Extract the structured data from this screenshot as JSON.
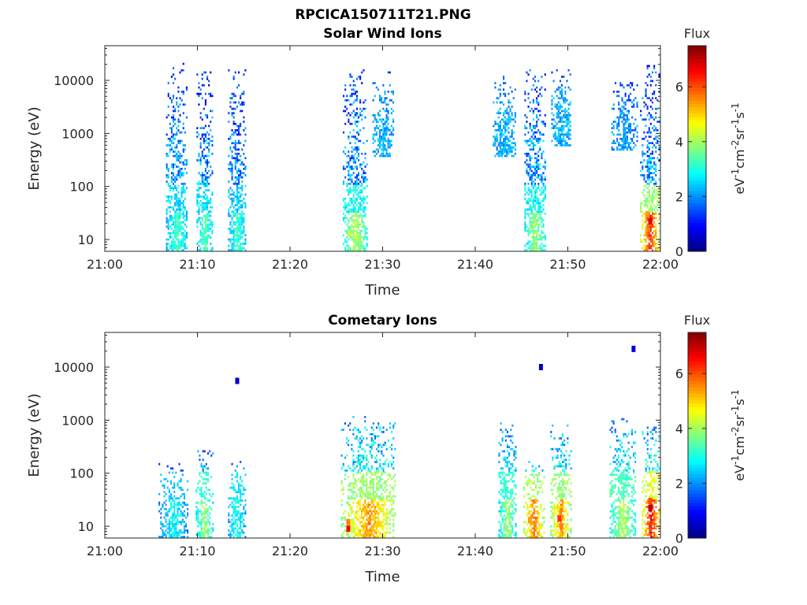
{
  "figure": {
    "main_title": "RPCICA150711T21.PNG",
    "colors": {
      "background": "#ffffff",
      "axes": "#262626",
      "colormap": "jet"
    }
  },
  "chart_data": [
    {
      "type": "heatmap",
      "title": "Solar Wind Ions",
      "xlabel": "Time",
      "ylabel": "Energy (eV)",
      "x_tick_labels": [
        "21:00",
        "21:10",
        "21:20",
        "21:30",
        "21:40",
        "21:50",
        "22:00"
      ],
      "x_ticks_min": [
        0,
        10,
        20,
        30,
        40,
        50,
        60
      ],
      "xlim_min": [
        0,
        60
      ],
      "yscale": "log",
      "y_tick_labels": [
        "10",
        "100",
        "1000",
        "10000"
      ],
      "y_ticks": [
        10,
        100,
        1000,
        10000
      ],
      "ylim": [
        6,
        45000
      ],
      "colorbar": {
        "title": "Flux",
        "label_html": "eV<tspan baseline-shift='super' font-size='12'>-1</tspan>cm<tspan baseline-shift='super' font-size='12'>-2</tspan>sr<tspan baseline-shift='super' font-size='12'>-1</tspan>s<tspan baseline-shift='super' font-size='12'>-1</tspan>",
        "ticks": [
          "0",
          "2",
          "4",
          "6"
        ],
        "range": [
          0,
          7.5
        ]
      },
      "bursts": [
        {
          "t_start": 6.6,
          "t_end": 8.9,
          "e_min": 6,
          "e_max": 20000,
          "center_flux": 2.0,
          "spread_flux": 1.6,
          "low_energy_flux": 3.0
        },
        {
          "t_start": 9.9,
          "t_end": 11.6,
          "e_min": 6,
          "e_max": 14000,
          "center_flux": 2.0,
          "spread_flux": 1.8,
          "low_energy_flux": 3.2
        },
        {
          "t_start": 13.3,
          "t_end": 15.2,
          "e_min": 6,
          "e_max": 16000,
          "center_flux": 1.8,
          "spread_flux": 1.6,
          "low_energy_flux": 3.0
        },
        {
          "t_start": 25.7,
          "t_end": 28.3,
          "e_min": 6,
          "e_max": 15000,
          "center_flux": 2.0,
          "spread_flux": 1.8,
          "low_energy_flux": 3.8
        },
        {
          "t_start": 28.9,
          "t_end": 31.2,
          "e_min": 400,
          "e_max": 14000,
          "center_flux": 2.2,
          "spread_flux": 1.0,
          "low_energy_flux": 2.2
        },
        {
          "t_start": 41.9,
          "t_end": 44.3,
          "e_min": 400,
          "e_max": 12000,
          "center_flux": 2.2,
          "spread_flux": 1.0,
          "low_energy_flux": 2.2
        },
        {
          "t_start": 45.3,
          "t_end": 47.6,
          "e_min": 6,
          "e_max": 15000,
          "center_flux": 2.0,
          "spread_flux": 1.8,
          "low_energy_flux": 3.6
        },
        {
          "t_start": 48.2,
          "t_end": 50.3,
          "e_min": 600,
          "e_max": 15000,
          "center_flux": 2.2,
          "spread_flux": 1.0,
          "low_energy_flux": 2.2
        },
        {
          "t_start": 54.7,
          "t_end": 57.5,
          "e_min": 500,
          "e_max": 9000,
          "center_flux": 2.0,
          "spread_flux": 1.0,
          "low_energy_flux": 2.0
        },
        {
          "t_start": 57.8,
          "t_end": 59.8,
          "e_min": 6,
          "e_max": 18000,
          "center_flux": 2.0,
          "spread_flux": 1.8,
          "low_energy_flux": 5.8
        }
      ],
      "hotspots": [
        {
          "t": 58.9,
          "e": 22,
          "flux": 6.8
        },
        {
          "t": 58.6,
          "e": 30,
          "flux": 5.4
        },
        {
          "t": 26.4,
          "e": 13,
          "flux": 4.2
        },
        {
          "t": 46.1,
          "e": 18,
          "flux": 3.8
        }
      ]
    },
    {
      "type": "heatmap",
      "title": "Cometary Ions",
      "xlabel": "Time",
      "ylabel": "Energy (eV)",
      "x_tick_labels": [
        "21:00",
        "21:10",
        "21:20",
        "21:30",
        "21:40",
        "21:50",
        "22:00"
      ],
      "x_ticks_min": [
        0,
        10,
        20,
        30,
        40,
        50,
        60
      ],
      "xlim_min": [
        0,
        60
      ],
      "yscale": "log",
      "y_tick_labels": [
        "10",
        "100",
        "1000",
        "10000"
      ],
      "y_ticks": [
        10,
        100,
        1000,
        10000
      ],
      "ylim": [
        6,
        45000
      ],
      "colorbar": {
        "title": "Flux",
        "label_html": "eV<tspan baseline-shift='super' font-size='12'>-1</tspan>cm<tspan baseline-shift='super' font-size='12'>-2</tspan>sr<tspan baseline-shift='super' font-size='12'>-1</tspan>s<tspan baseline-shift='super' font-size='12'>-1</tspan>",
        "ticks": [
          "0",
          "2",
          "4",
          "6"
        ],
        "range": [
          0,
          7.5
        ]
      },
      "bursts": [
        {
          "t_start": 5.8,
          "t_end": 8.9,
          "e_min": 6,
          "e_max": 150,
          "center_flux": 2.1,
          "spread_flux": 0.6,
          "low_energy_flux": 2.6
        },
        {
          "t_start": 9.8,
          "t_end": 11.6,
          "e_min": 6,
          "e_max": 250,
          "center_flux": 2.6,
          "spread_flux": 1.2,
          "low_energy_flux": 3.6
        },
        {
          "t_start": 13.3,
          "t_end": 15.1,
          "e_min": 6,
          "e_max": 160,
          "center_flux": 2.4,
          "spread_flux": 1.0,
          "low_energy_flux": 2.8
        },
        {
          "t_start": 25.5,
          "t_end": 31.4,
          "e_min": 6,
          "e_max": 1100,
          "center_flux": 2.8,
          "spread_flux": 1.6,
          "low_energy_flux": 5.0
        },
        {
          "t_start": 42.5,
          "t_end": 44.4,
          "e_min": 6,
          "e_max": 900,
          "center_flux": 2.6,
          "spread_flux": 1.4,
          "low_energy_flux": 3.6
        },
        {
          "t_start": 45.2,
          "t_end": 47.4,
          "e_min": 6,
          "e_max": 160,
          "center_flux": 2.8,
          "spread_flux": 1.6,
          "low_energy_flux": 5.2
        },
        {
          "t_start": 48.1,
          "t_end": 50.3,
          "e_min": 6,
          "e_max": 800,
          "center_flux": 2.8,
          "spread_flux": 1.6,
          "low_energy_flux": 5.0
        },
        {
          "t_start": 54.5,
          "t_end": 57.3,
          "e_min": 6,
          "e_max": 1000,
          "center_flux": 2.8,
          "spread_flux": 1.4,
          "low_energy_flux": 3.8
        },
        {
          "t_start": 58.0,
          "t_end": 59.9,
          "e_min": 6,
          "e_max": 700,
          "center_flux": 3.0,
          "spread_flux": 1.8,
          "low_energy_flux": 6.0
        }
      ],
      "hotspots": [
        {
          "t": 26.3,
          "e": 9,
          "flux": 6.6
        },
        {
          "t": 26.3,
          "e": 12,
          "flux": 5.6
        },
        {
          "t": 29.5,
          "e": 11,
          "flux": 5.0
        },
        {
          "t": 45.9,
          "e": 13,
          "flux": 5.4
        },
        {
          "t": 49.1,
          "e": 14,
          "flux": 6.2
        },
        {
          "t": 49.3,
          "e": 10,
          "flux": 5.6
        },
        {
          "t": 58.9,
          "e": 22,
          "flux": 7.0
        },
        {
          "t": 58.9,
          "e": 30,
          "flux": 6.0
        },
        {
          "t": 14.3,
          "e": 5500,
          "flux": 0.6
        },
        {
          "t": 47.1,
          "e": 10000,
          "flux": 0.5
        },
        {
          "t": 57.1,
          "e": 22000,
          "flux": 0.7
        }
      ]
    }
  ]
}
